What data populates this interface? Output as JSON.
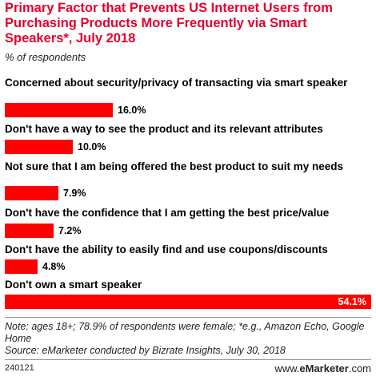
{
  "header": {
    "title": "Primary Factor that Prevents US Internet Users from Purchasing Products More Frequently via Smart Speakers*, July 2018",
    "subtitle": "% of respondents"
  },
  "chart_data": {
    "type": "bar",
    "orientation": "horizontal",
    "categories": [
      "Concerned about security/privacy of transacting via smart speaker",
      "Don't have a way to see the product and its relevant attributes",
      "Not sure that I am being offered the best product to suit my needs",
      "Don't have the confidence that I am getting the best price/value",
      "Don't have the ability to easily find and use coupons/discounts",
      "Don't own a smart speaker"
    ],
    "values": [
      16.0,
      10.0,
      7.9,
      7.2,
      4.8,
      54.1
    ],
    "value_labels": [
      "16.0%",
      "10.0%",
      "7.9%",
      "7.2%",
      "4.8%",
      "54.1%"
    ],
    "xlim": [
      0,
      54.1
    ],
    "bar_color": "#ff0000",
    "grid": false,
    "legend": "none"
  },
  "notes": {
    "note": "Note: ages 18+; 78.9% of respondents were female; *e.g., Amazon Echo, Google Home",
    "source": "Source: eMarketer conducted by Bizrate Insights, July 30, 2018"
  },
  "footer": {
    "id": "240121",
    "brand_prefix": "www.",
    "brand_name": "eMarketer",
    "brand_suffix": ".com"
  }
}
